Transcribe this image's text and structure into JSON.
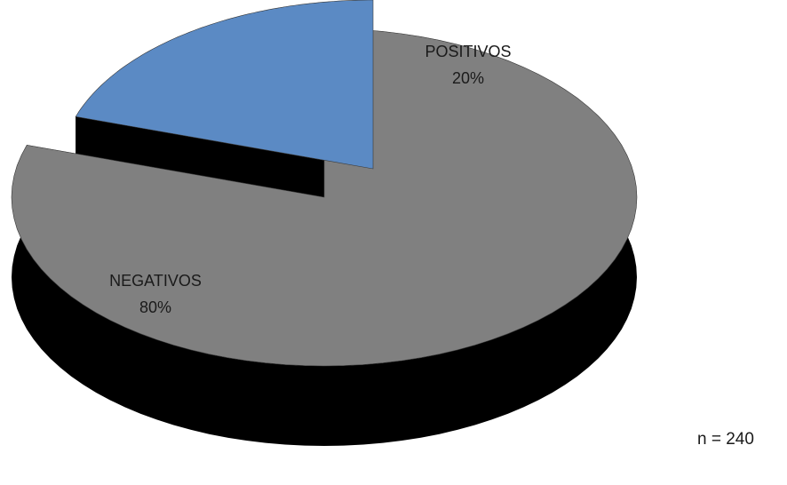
{
  "chart_data": {
    "type": "pie",
    "style": "3d-exploded",
    "slices": [
      {
        "label": "NEGATIVOS",
        "percent": "80%",
        "value": 80,
        "color": "#808080",
        "exploded": false
      },
      {
        "label": "POSITIVOS",
        "percent": "20%",
        "value": 20,
        "color": "#5b8ac4",
        "exploded": true
      }
    ],
    "depth_color": "#000000",
    "legend": "none"
  },
  "note": "n = 240"
}
